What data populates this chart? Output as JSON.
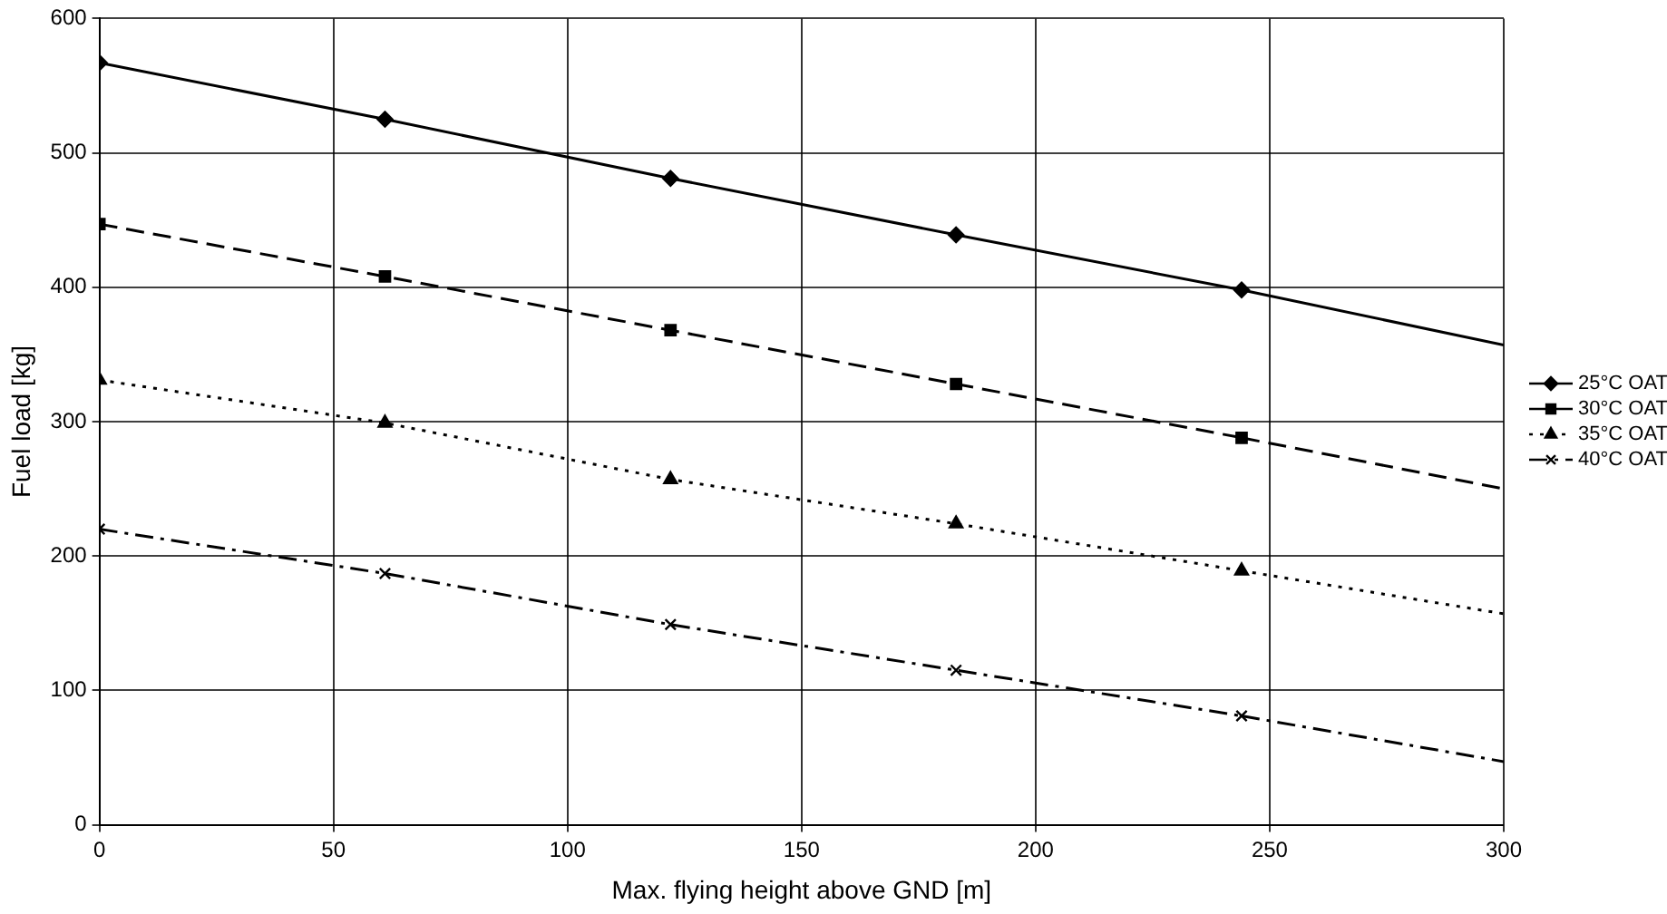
{
  "chart_data": {
    "type": "line",
    "xlabel": "Max. flying height above GND [m]",
    "ylabel": "Fuel load [kg]",
    "xlim": [
      0,
      300
    ],
    "xticks": [
      0,
      50,
      100,
      150,
      200,
      250,
      300
    ],
    "ylim": [
      0,
      600
    ],
    "yticks": [
      0,
      100,
      200,
      300,
      400,
      500,
      600
    ],
    "grid": true,
    "legend": "right",
    "series": [
      {
        "name": "25°C OAT",
        "color": "#000000",
        "x": [
          0,
          61,
          122,
          183,
          244
        ],
        "values": [
          567,
          525,
          481,
          439,
          398
        ],
        "marker": "diamond",
        "line_style": "solid"
      },
      {
        "name": "30°C OAT",
        "color": "#000000",
        "x": [
          0,
          61,
          122,
          183,
          244
        ],
        "values": [
          447,
          408,
          368,
          328,
          288
        ],
        "marker": "square",
        "line_style": "dashed"
      },
      {
        "name": "35°C OAT",
        "color": "#000000",
        "x": [
          0,
          61,
          122,
          183,
          244
        ],
        "values": [
          331,
          299,
          257,
          224,
          189
        ],
        "marker": "triangle",
        "line_style": "dotted"
      },
      {
        "name": "40°C OAT",
        "color": "#000000",
        "x": [
          0,
          61,
          122,
          183,
          244
        ],
        "values": [
          220,
          187,
          149,
          115,
          81
        ],
        "marker": "cross",
        "line_style": "dashdot"
      },
      {
        "color": "#000000",
        "x": [
          244,
          300
        ],
        "values": [
          398,
          357
        ],
        "marker": "none",
        "line_style": "solid"
      },
      {
        "color": "#000000",
        "x": [
          244,
          300
        ],
        "values": [
          288,
          250
        ],
        "marker": "none",
        "line_style": "dashed"
      },
      {
        "color": "#000000",
        "x": [
          244,
          300
        ],
        "values": [
          189,
          157
        ],
        "marker": "none",
        "line_style": "dotted"
      },
      {
        "color": "#000000",
        "x": [
          244,
          300
        ],
        "values": [
          81,
          47
        ],
        "marker": "none",
        "line_style": "dashdot"
      }
    ]
  }
}
